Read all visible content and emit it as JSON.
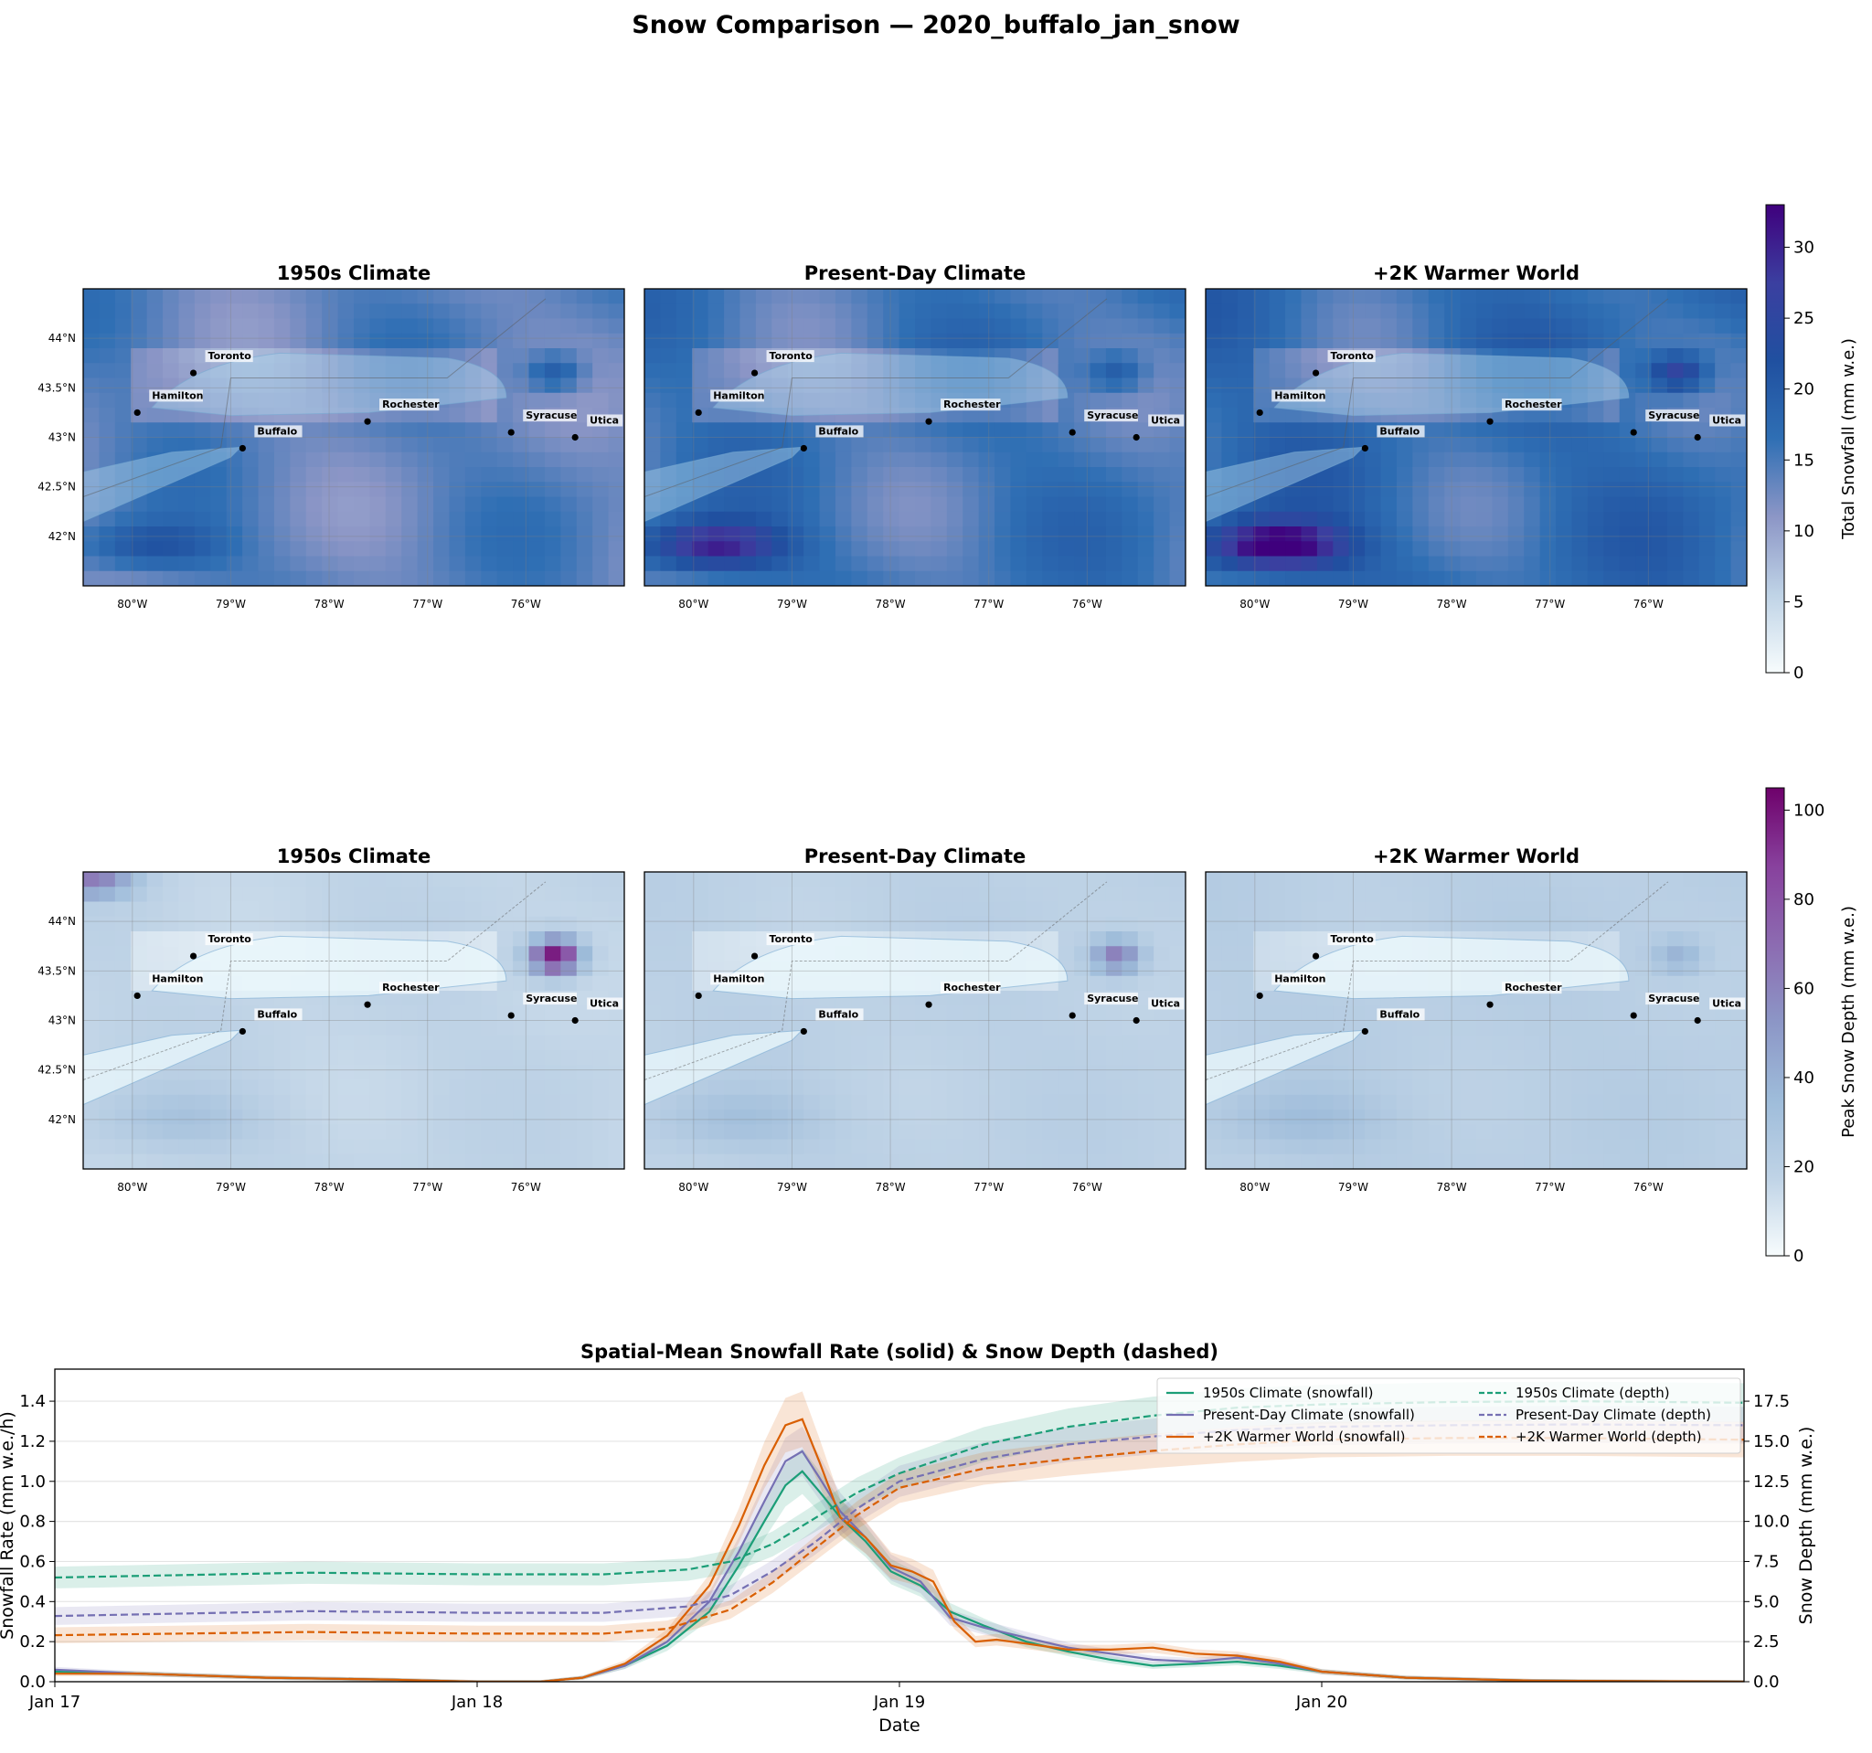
{
  "figure": {
    "suptitle": "Snow Comparison — 2020_buffalo_jan_snow"
  },
  "maps": {
    "extent": {
      "lon": [
        -80.5,
        -75.0
      ],
      "lat": [
        41.5,
        44.5
      ]
    },
    "lon_ticks": [
      {
        "v": -80,
        "label": "80°W"
      },
      {
        "v": -79,
        "label": "79°W"
      },
      {
        "v": -78,
        "label": "78°W"
      },
      {
        "v": -77,
        "label": "77°W"
      },
      {
        "v": -76,
        "label": "76°W"
      }
    ],
    "lat_ticks": [
      {
        "v": 42,
        "label": "42°N"
      },
      {
        "v": 42.5,
        "label": "42.5°N"
      },
      {
        "v": 43,
        "label": "43°N"
      },
      {
        "v": 43.5,
        "label": "43.5°N"
      },
      {
        "v": 44,
        "label": "44°N"
      }
    ],
    "cities": [
      {
        "name": "Toronto",
        "lon": -79.38,
        "lat": 43.65
      },
      {
        "name": "Hamilton",
        "lon": -79.95,
        "lat": 43.25
      },
      {
        "name": "Buffalo",
        "lon": -78.88,
        "lat": 42.89
      },
      {
        "name": "Rochester",
        "lon": -77.61,
        "lat": 43.16
      },
      {
        "name": "Syracuse",
        "lon": -76.15,
        "lat": 43.05
      },
      {
        "name": "Utica",
        "lon": -75.5,
        "lat": 43.0
      }
    ],
    "panel_titles": [
      "1950s Climate",
      "Present-Day Climate",
      "+2K Warmer World"
    ],
    "rows": [
      {
        "quantity": "snowfall",
        "colorbar": {
          "label": "Total Snowfall (mm w.e.)",
          "min": 0,
          "max": 33,
          "ticks": [
            0,
            5,
            10,
            15,
            20,
            25,
            30
          ],
          "colors": [
            "#f7fcfd",
            "#bfd3e6",
            "#8c96c6",
            "#2f6fb4",
            "#2050a0",
            "#3b3fa0",
            "#3f007d"
          ]
        }
      },
      {
        "quantity": "depth",
        "colorbar": {
          "label": "Peak Snow Depth (mm w.e.)",
          "min": 0,
          "max": 105,
          "ticks": [
            0,
            20,
            40,
            60,
            80,
            100
          ],
          "colors": [
            "#f7fcfd",
            "#bfd3e6",
            "#9ebcda",
            "#8c96c6",
            "#8c6bb1",
            "#88419d",
            "#6e016b"
          ]
        }
      }
    ]
  },
  "chart_data": {
    "type": "line",
    "title": "Spatial-Mean Snowfall Rate (solid) & Snow Depth (dashed)",
    "xlabel": "Date",
    "ylabel": "Snowfall Rate (mm w.e./h)",
    "y2label": "Snow Depth (mm w.e.)",
    "x_ticks": [
      "Jan 17",
      "Jan 18",
      "Jan 19",
      "Jan 20"
    ],
    "x_range_days": [
      0,
      4
    ],
    "ylim": [
      0,
      1.56
    ],
    "y2lim": [
      0,
      19.5
    ],
    "y_ticks": [
      0.0,
      0.2,
      0.4,
      0.6,
      0.8,
      1.0,
      1.2,
      1.4
    ],
    "y2_ticks": [
      0.0,
      2.5,
      5.0,
      7.5,
      10.0,
      12.5,
      15.0,
      17.5
    ],
    "grid": true,
    "legend": "top-right",
    "series": [
      {
        "name": "1950s Climate (snowfall)",
        "axis": "left",
        "style": "solid",
        "color": "#1b9e77",
        "points": [
          [
            0,
            0.05
          ],
          [
            0.2,
            0.04
          ],
          [
            0.5,
            0.02
          ],
          [
            0.8,
            0.01
          ],
          [
            1.0,
            0.0
          ],
          [
            1.15,
            0.0
          ],
          [
            1.25,
            0.02
          ],
          [
            1.35,
            0.08
          ],
          [
            1.45,
            0.18
          ],
          [
            1.55,
            0.35
          ],
          [
            1.62,
            0.58
          ],
          [
            1.68,
            0.8
          ],
          [
            1.73,
            0.98
          ],
          [
            1.77,
            1.05
          ],
          [
            1.81,
            0.95
          ],
          [
            1.86,
            0.82
          ],
          [
            1.92,
            0.7
          ],
          [
            1.98,
            0.55
          ],
          [
            2.05,
            0.48
          ],
          [
            2.12,
            0.35
          ],
          [
            2.2,
            0.28
          ],
          [
            2.3,
            0.2
          ],
          [
            2.4,
            0.15
          ],
          [
            2.5,
            0.11
          ],
          [
            2.6,
            0.08
          ],
          [
            2.7,
            0.09
          ],
          [
            2.8,
            0.1
          ],
          [
            2.9,
            0.08
          ],
          [
            3.0,
            0.05
          ],
          [
            3.2,
            0.02
          ],
          [
            3.5,
            0.005
          ],
          [
            4.0,
            0.0
          ]
        ]
      },
      {
        "name": "Present-Day Climate (snowfall)",
        "axis": "left",
        "style": "solid",
        "color": "#7570b3",
        "points": [
          [
            0,
            0.06
          ],
          [
            0.2,
            0.04
          ],
          [
            0.5,
            0.02
          ],
          [
            0.8,
            0.01
          ],
          [
            1.0,
            0.0
          ],
          [
            1.15,
            0.0
          ],
          [
            1.25,
            0.02
          ],
          [
            1.35,
            0.08
          ],
          [
            1.45,
            0.2
          ],
          [
            1.55,
            0.4
          ],
          [
            1.62,
            0.65
          ],
          [
            1.68,
            0.9
          ],
          [
            1.73,
            1.1
          ],
          [
            1.77,
            1.15
          ],
          [
            1.81,
            1.02
          ],
          [
            1.86,
            0.85
          ],
          [
            1.92,
            0.72
          ],
          [
            1.98,
            0.57
          ],
          [
            2.05,
            0.5
          ],
          [
            2.12,
            0.32
          ],
          [
            2.2,
            0.27
          ],
          [
            2.3,
            0.22
          ],
          [
            2.4,
            0.17
          ],
          [
            2.5,
            0.14
          ],
          [
            2.6,
            0.11
          ],
          [
            2.7,
            0.1
          ],
          [
            2.8,
            0.12
          ],
          [
            2.9,
            0.09
          ],
          [
            3.0,
            0.05
          ],
          [
            3.2,
            0.02
          ],
          [
            3.5,
            0.005
          ],
          [
            4.0,
            0.0
          ]
        ]
      },
      {
        "name": "+2K Warmer World (snowfall)",
        "axis": "left",
        "style": "solid",
        "color": "#d95f02",
        "points": [
          [
            0,
            0.04
          ],
          [
            0.2,
            0.04
          ],
          [
            0.5,
            0.02
          ],
          [
            0.8,
            0.01
          ],
          [
            1.0,
            0.0
          ],
          [
            1.15,
            0.0
          ],
          [
            1.25,
            0.02
          ],
          [
            1.35,
            0.09
          ],
          [
            1.45,
            0.23
          ],
          [
            1.55,
            0.48
          ],
          [
            1.62,
            0.78
          ],
          [
            1.68,
            1.08
          ],
          [
            1.73,
            1.28
          ],
          [
            1.77,
            1.31
          ],
          [
            1.81,
            1.1
          ],
          [
            1.86,
            0.82
          ],
          [
            1.92,
            0.72
          ],
          [
            1.98,
            0.58
          ],
          [
            2.03,
            0.55
          ],
          [
            2.08,
            0.5
          ],
          [
            2.13,
            0.3
          ],
          [
            2.18,
            0.2
          ],
          [
            2.23,
            0.21
          ],
          [
            2.3,
            0.19
          ],
          [
            2.4,
            0.16
          ],
          [
            2.5,
            0.16
          ],
          [
            2.6,
            0.17
          ],
          [
            2.7,
            0.14
          ],
          [
            2.8,
            0.13
          ],
          [
            2.9,
            0.1
          ],
          [
            3.0,
            0.05
          ],
          [
            3.2,
            0.02
          ],
          [
            3.5,
            0.005
          ],
          [
            4.0,
            0.0
          ]
        ]
      },
      {
        "name": "1950s Climate (depth)",
        "axis": "right",
        "style": "dashed",
        "color": "#1b9e77",
        "points": [
          [
            0,
            6.5
          ],
          [
            0.6,
            6.8
          ],
          [
            1.0,
            6.7
          ],
          [
            1.3,
            6.7
          ],
          [
            1.5,
            7.0
          ],
          [
            1.6,
            7.5
          ],
          [
            1.7,
            8.6
          ],
          [
            1.8,
            10.2
          ],
          [
            1.9,
            11.8
          ],
          [
            2.0,
            13.0
          ],
          [
            2.2,
            14.8
          ],
          [
            2.4,
            15.9
          ],
          [
            2.6,
            16.6
          ],
          [
            2.8,
            17.1
          ],
          [
            3.0,
            17.3
          ],
          [
            3.3,
            17.45
          ],
          [
            3.6,
            17.5
          ],
          [
            4.0,
            17.4
          ]
        ]
      },
      {
        "name": "Present-Day Climate (depth)",
        "axis": "right",
        "style": "dashed",
        "color": "#7570b3",
        "points": [
          [
            0,
            4.1
          ],
          [
            0.6,
            4.4
          ],
          [
            1.0,
            4.3
          ],
          [
            1.3,
            4.3
          ],
          [
            1.5,
            4.7
          ],
          [
            1.6,
            5.4
          ],
          [
            1.7,
            6.9
          ],
          [
            1.8,
            8.7
          ],
          [
            1.9,
            10.8
          ],
          [
            2.0,
            12.5
          ],
          [
            2.2,
            13.9
          ],
          [
            2.4,
            14.8
          ],
          [
            2.6,
            15.3
          ],
          [
            2.8,
            15.7
          ],
          [
            3.0,
            15.9
          ],
          [
            3.3,
            16.0
          ],
          [
            3.6,
            16.05
          ],
          [
            4.0,
            16.0
          ]
        ]
      },
      {
        "name": "+2K Warmer World (depth)",
        "axis": "right",
        "style": "dashed",
        "color": "#d95f02",
        "points": [
          [
            0,
            2.9
          ],
          [
            0.6,
            3.1
          ],
          [
            1.0,
            3.0
          ],
          [
            1.3,
            3.0
          ],
          [
            1.45,
            3.3
          ],
          [
            1.6,
            4.5
          ],
          [
            1.7,
            6.2
          ],
          [
            1.8,
            8.3
          ],
          [
            1.9,
            10.4
          ],
          [
            2.0,
            12.1
          ],
          [
            2.2,
            13.3
          ],
          [
            2.4,
            13.9
          ],
          [
            2.6,
            14.4
          ],
          [
            2.8,
            14.8
          ],
          [
            3.0,
            15.1
          ],
          [
            3.3,
            15.2
          ],
          [
            3.6,
            15.2
          ],
          [
            4.0,
            15.1
          ]
        ]
      }
    ]
  }
}
